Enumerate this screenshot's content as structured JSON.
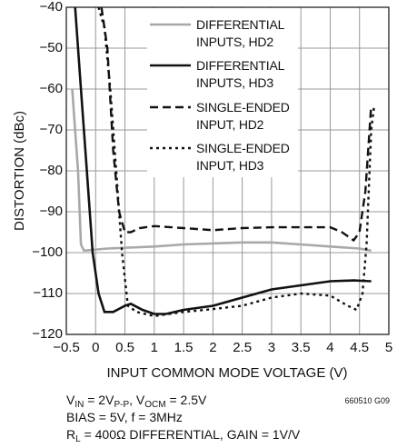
{
  "chart_data": {
    "type": "line",
    "xlabel": "INPUT COMMON MODE VOLTAGE (V)",
    "ylabel": "DISTORTION (dBc)",
    "xlim": [
      -0.5,
      5
    ],
    "ylim": [
      -120,
      -40
    ],
    "xticks": [
      {
        "value": -0.5,
        "label": "−0.5"
      },
      0,
      0.5,
      1,
      1.5,
      2,
      2.5,
      3,
      3.5,
      4,
      4.5,
      5
    ],
    "yticks": [
      {
        "value": -120,
        "label": "−120"
      },
      {
        "value": -110,
        "label": "−110"
      },
      {
        "value": -100,
        "label": "−100"
      },
      {
        "value": -90,
        "label": "−90"
      },
      {
        "value": -80,
        "label": "−80"
      },
      {
        "value": -70,
        "label": "−70"
      },
      {
        "value": -60,
        "label": "−60"
      },
      {
        "value": -50,
        "label": "−50"
      },
      {
        "value": -40,
        "label": "−40"
      }
    ],
    "grid": true,
    "legend": "upper center",
    "series": [
      {
        "name": "DIFFERENTIAL INPUTS, HD2",
        "color": "#a8a8a8",
        "dash": "solid",
        "x": [
          -0.4,
          -0.3,
          -0.25,
          -0.2,
          0.2,
          1,
          1.5,
          2.5,
          3,
          3.5,
          4,
          4.5,
          4.7
        ],
        "values": [
          -60,
          -80,
          -98,
          -99.5,
          -99,
          -98.5,
          -98,
          -97.5,
          -97.5,
          -98,
          -98.5,
          -99,
          -99.5
        ]
      },
      {
        "name": "DIFFERENTIAL INPUTS, HD3",
        "color": "#111111",
        "dash": "solid",
        "x": [
          -0.35,
          -0.25,
          -0.15,
          -0.05,
          0.05,
          0.15,
          0.3,
          0.5,
          0.6,
          0.8,
          1,
          1.2,
          1.5,
          2,
          2.5,
          3,
          3.5,
          4,
          4.4,
          4.7
        ],
        "values": [
          -40,
          -60,
          -80,
          -100,
          -110,
          -114.5,
          -114.5,
          -113,
          -112.5,
          -114,
          -115,
          -115,
          -114,
          -113,
          -111,
          -109,
          -108,
          -107,
          -106.8,
          -107
        ]
      },
      {
        "name": "SINGLE-ENDED INPUT, HD2",
        "color": "#111111",
        "dash": "dashed",
        "x": [
          0.1,
          0.2,
          0.3,
          0.4,
          0.5,
          0.6,
          0.75,
          1,
          1.5,
          2,
          2.5,
          3,
          3.5,
          4,
          4.2,
          4.4,
          4.5,
          4.6,
          4.7
        ],
        "values": [
          -40,
          -50,
          -75,
          -90,
          -95,
          -95,
          -94,
          -93.5,
          -94,
          -94.5,
          -94,
          -93.8,
          -93.8,
          -93.8,
          -95,
          -97,
          -95,
          -85,
          -64
        ]
      },
      {
        "name": "SINGLE-ENDED INPUT, HD3",
        "color": "#111111",
        "dash": "dotted",
        "x": [
          0.05,
          0.15,
          0.25,
          0.35,
          0.45,
          0.55,
          0.7,
          1,
          1.5,
          2,
          2.5,
          3,
          3.5,
          4,
          4.3,
          4.45,
          4.55,
          4.62,
          4.7,
          4.75
        ],
        "values": [
          -40,
          -45,
          -60,
          -80,
          -100,
          -113,
          -114.5,
          -115.5,
          -114.5,
          -113.8,
          -113,
          -111,
          -110,
          -110.5,
          -113,
          -114,
          -110,
          -98,
          -70,
          -64
        ]
      }
    ]
  },
  "notes": [
    [
      "V",
      "IN",
      " = 2V",
      "P-P",
      ", V",
      "OCM",
      " = 2.5V"
    ],
    [
      "BIAS = 5V, f = 3MHz"
    ],
    [
      "R",
      "L",
      " = 400Ω DIFFERENTIAL, GAIN = 1V/V"
    ]
  ],
  "figure_id": "660510 G09"
}
